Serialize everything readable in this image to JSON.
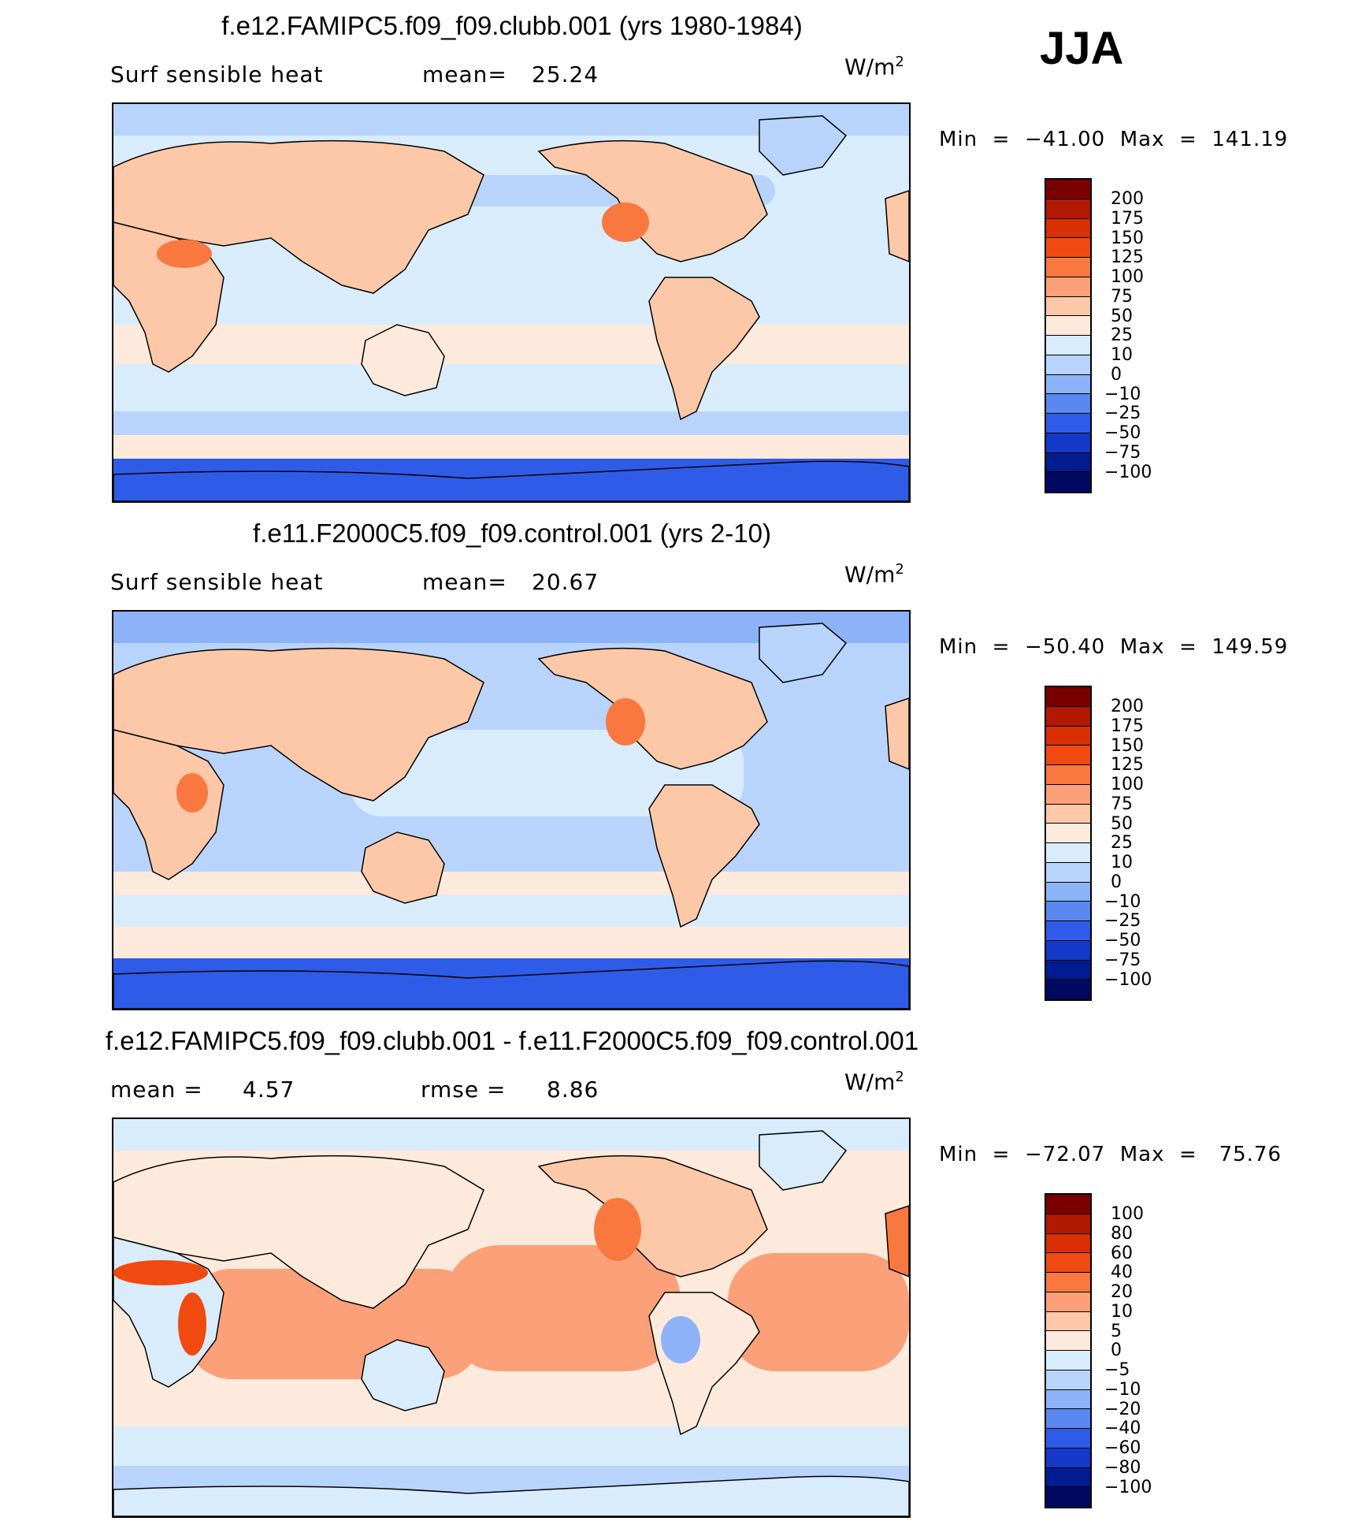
{
  "season": "JJA",
  "chart_data": [
    {
      "type": "heatmap",
      "title": "f.e12.FAMIPC5.f09_f09.clubb.001 (yrs 1980-1984)",
      "variable": "Surf sensible heat",
      "stat_label": "mean=",
      "stat_value": "25.24",
      "units_base": "W/m",
      "units_exp": "2",
      "min_max_text": "Min  =  −41.00  Max  =  141.19",
      "min": -41.0,
      "max": 141.19,
      "levels": [
        "200",
        "175",
        "150",
        "125",
        "100",
        "75",
        "50",
        "25",
        "10",
        "0",
        "−10",
        "−25",
        "−50",
        "−75",
        "−100"
      ],
      "colors": [
        "#7a0000",
        "#b01800",
        "#d83000",
        "#f04a10",
        "#f87840",
        "#fba078",
        "#fcc8a8",
        "#feeadc",
        "#d8ecfc",
        "#b8d4fc",
        "#8cb2f8",
        "#5a88f0",
        "#2e5ce8",
        "#1438c8",
        "#001c90",
        "#000a60"
      ]
    },
    {
      "type": "heatmap",
      "title": "f.e11.F2000C5.f09_f09.control.001 (yrs 2-10)",
      "variable": "Surf sensible heat",
      "stat_label": "mean=",
      "stat_value": "20.67",
      "units_base": "W/m",
      "units_exp": "2",
      "min_max_text": "Min  =  −50.40  Max  =  149.59",
      "min": -50.4,
      "max": 149.59,
      "levels": [
        "200",
        "175",
        "150",
        "125",
        "100",
        "75",
        "50",
        "25",
        "10",
        "0",
        "−10",
        "−25",
        "−50",
        "−75",
        "−100"
      ],
      "colors": [
        "#7a0000",
        "#b01800",
        "#d83000",
        "#f04a10",
        "#f87840",
        "#fba078",
        "#fcc8a8",
        "#feeadc",
        "#d8ecfc",
        "#b8d4fc",
        "#8cb2f8",
        "#5a88f0",
        "#2e5ce8",
        "#1438c8",
        "#001c90",
        "#000a60"
      ]
    },
    {
      "type": "heatmap",
      "title": "f.e12.FAMIPC5.f09_f09.clubb.001 - f.e11.F2000C5.f09_f09.control.001",
      "stat1_label": "mean =",
      "stat1_value": "4.57",
      "stat2_label": "rmse =",
      "stat2_value": "8.86",
      "units_base": "W/m",
      "units_exp": "2",
      "min_max_text": "Min  =  −72.07  Max  =   75.76",
      "min": -72.07,
      "max": 75.76,
      "levels": [
        "100",
        "80",
        "60",
        "40",
        "20",
        "10",
        "5",
        "0",
        "−5",
        "−10",
        "−20",
        "−40",
        "−60",
        "−80",
        "−100"
      ],
      "colors": [
        "#7a0000",
        "#b01800",
        "#d83000",
        "#f04a10",
        "#f87840",
        "#fba078",
        "#fcc8a8",
        "#feeadc",
        "#d8ecfc",
        "#b8d4fc",
        "#8cb2f8",
        "#5a88f0",
        "#2e5ce8",
        "#1438c8",
        "#001c90",
        "#000a60"
      ]
    }
  ]
}
